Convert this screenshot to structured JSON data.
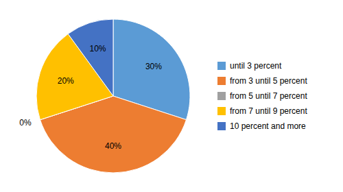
{
  "chart_data": {
    "type": "pie",
    "categories": [
      "until 3 percent",
      "from 3 until 5 percent",
      "from 5 until 7 percent",
      "from 7 until 9 percent",
      "10 percent and more"
    ],
    "values": [
      30,
      40,
      0,
      20,
      10
    ],
    "value_labels": [
      "30%",
      "40%",
      "0%",
      "20%",
      "10%"
    ],
    "colors": [
      "#5B9BD5",
      "#ED7D31",
      "#A0A0A0",
      "#FFC000",
      "#4472C4"
    ],
    "data_labels": true,
    "legend": "right"
  }
}
